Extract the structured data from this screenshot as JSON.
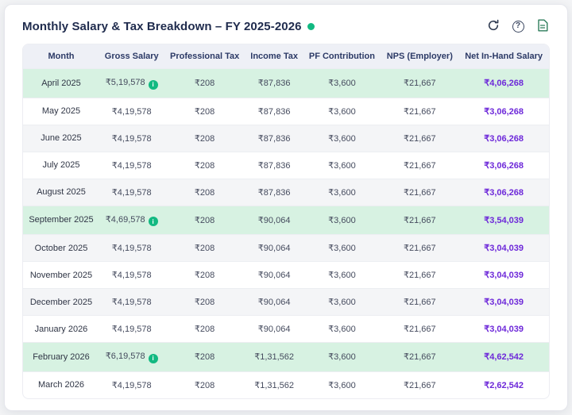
{
  "header": {
    "title": "Monthly Salary & Tax Breakdown – FY 2025-2026",
    "status_dot_color": "#12b981",
    "icons": [
      {
        "name": "refresh-icon"
      },
      {
        "name": "help-icon",
        "glyph": "?"
      },
      {
        "name": "document-icon"
      }
    ]
  },
  "colors": {
    "highlight_row": "#d7f2e2",
    "stripe_row": "#f4f5f7",
    "net_salary_text": "#6d28d9",
    "header_text": "#2c3a66",
    "info_badge": "#12b981"
  },
  "table": {
    "columns": [
      "Month",
      "Gross Salary",
      "Professional Tax",
      "Income Tax",
      "PF Contribution",
      "NPS (Employer)",
      "Net In-Hand Salary"
    ],
    "rows": [
      {
        "month": "April 2025",
        "gross_salary": "₹5,19,578",
        "gross_info": true,
        "professional_tax": "₹208",
        "income_tax": "₹87,836",
        "pf_contribution": "₹3,600",
        "nps_employer": "₹21,667",
        "net_salary": "₹4,06,268",
        "highlight": true
      },
      {
        "month": "May 2025",
        "gross_salary": "₹4,19,578",
        "gross_info": false,
        "professional_tax": "₹208",
        "income_tax": "₹87,836",
        "pf_contribution": "₹3,600",
        "nps_employer": "₹21,667",
        "net_salary": "₹3,06,268",
        "highlight": false
      },
      {
        "month": "June 2025",
        "gross_salary": "₹4,19,578",
        "gross_info": false,
        "professional_tax": "₹208",
        "income_tax": "₹87,836",
        "pf_contribution": "₹3,600",
        "nps_employer": "₹21,667",
        "net_salary": "₹3,06,268",
        "highlight": false
      },
      {
        "month": "July 2025",
        "gross_salary": "₹4,19,578",
        "gross_info": false,
        "professional_tax": "₹208",
        "income_tax": "₹87,836",
        "pf_contribution": "₹3,600",
        "nps_employer": "₹21,667",
        "net_salary": "₹3,06,268",
        "highlight": false
      },
      {
        "month": "August 2025",
        "gross_salary": "₹4,19,578",
        "gross_info": false,
        "professional_tax": "₹208",
        "income_tax": "₹87,836",
        "pf_contribution": "₹3,600",
        "nps_employer": "₹21,667",
        "net_salary": "₹3,06,268",
        "highlight": false
      },
      {
        "month": "September 2025",
        "gross_salary": "₹4,69,578",
        "gross_info": true,
        "professional_tax": "₹208",
        "income_tax": "₹90,064",
        "pf_contribution": "₹3,600",
        "nps_employer": "₹21,667",
        "net_salary": "₹3,54,039",
        "highlight": true
      },
      {
        "month": "October 2025",
        "gross_salary": "₹4,19,578",
        "gross_info": false,
        "professional_tax": "₹208",
        "income_tax": "₹90,064",
        "pf_contribution": "₹3,600",
        "nps_employer": "₹21,667",
        "net_salary": "₹3,04,039",
        "highlight": false
      },
      {
        "month": "November 2025",
        "gross_salary": "₹4,19,578",
        "gross_info": false,
        "professional_tax": "₹208",
        "income_tax": "₹90,064",
        "pf_contribution": "₹3,600",
        "nps_employer": "₹21,667",
        "net_salary": "₹3,04,039",
        "highlight": false
      },
      {
        "month": "December 2025",
        "gross_salary": "₹4,19,578",
        "gross_info": false,
        "professional_tax": "₹208",
        "income_tax": "₹90,064",
        "pf_contribution": "₹3,600",
        "nps_employer": "₹21,667",
        "net_salary": "₹3,04,039",
        "highlight": false
      },
      {
        "month": "January 2026",
        "gross_salary": "₹4,19,578",
        "gross_info": false,
        "professional_tax": "₹208",
        "income_tax": "₹90,064",
        "pf_contribution": "₹3,600",
        "nps_employer": "₹21,667",
        "net_salary": "₹3,04,039",
        "highlight": false
      },
      {
        "month": "February 2026",
        "gross_salary": "₹6,19,578",
        "gross_info": true,
        "professional_tax": "₹208",
        "income_tax": "₹1,31,562",
        "pf_contribution": "₹3,600",
        "nps_employer": "₹21,667",
        "net_salary": "₹4,62,542",
        "highlight": true
      },
      {
        "month": "March 2026",
        "gross_salary": "₹4,19,578",
        "gross_info": false,
        "professional_tax": "₹208",
        "income_tax": "₹1,31,562",
        "pf_contribution": "₹3,600",
        "nps_employer": "₹21,667",
        "net_salary": "₹2,62,542",
        "highlight": false
      }
    ]
  }
}
